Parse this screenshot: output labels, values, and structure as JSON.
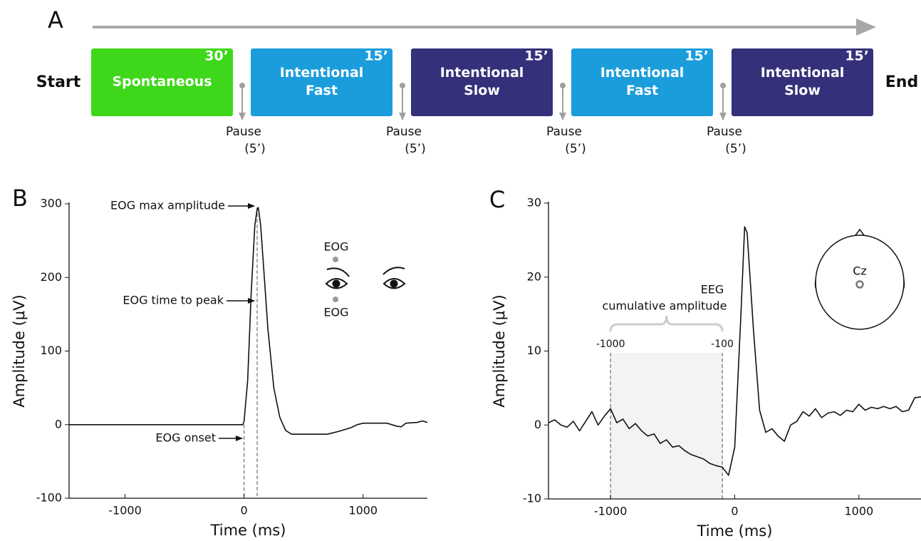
{
  "panel_labels": [
    "A",
    "B",
    "C"
  ],
  "protocol": {
    "start": "Start",
    "end": "End",
    "blocks": [
      {
        "lines": [
          "Spontaneous"
        ],
        "duration": "30’",
        "color": "#3fd71a"
      },
      {
        "lines": [
          "Intentional",
          "Fast"
        ],
        "duration": "15’",
        "color": "#1b9ddc"
      },
      {
        "lines": [
          "Intentional",
          "Slow"
        ],
        "duration": "15’",
        "color": "#343079"
      },
      {
        "lines": [
          "Intentional",
          "Fast"
        ],
        "duration": "15’",
        "color": "#1b9ddc"
      },
      {
        "lines": [
          "Intentional",
          "Slow"
        ],
        "duration": "15’",
        "color": "#343079"
      }
    ],
    "pauses": [
      {
        "label": "Pause",
        "duration": "(5’)"
      },
      {
        "label": "Pause",
        "duration": "(5’)"
      },
      {
        "label": "Pause",
        "duration": "(5’)"
      },
      {
        "label": "Pause",
        "duration": "(5’)"
      }
    ]
  },
  "chart_data": [
    {
      "type": "line",
      "xlabel": "Time (ms)",
      "ylabel": "Amplitude (μV)",
      "x": [
        -1470,
        -10,
        0,
        30,
        60,
        90,
        110,
        120,
        140,
        170,
        200,
        250,
        300,
        350,
        400,
        700,
        800,
        900,
        950,
        1000,
        1200,
        1280,
        1320,
        1360,
        1450,
        1500,
        1540
      ],
      "series": [
        {
          "color": "#111111",
          "values": [
            0,
            0,
            5,
            60,
            180,
            270,
            293,
            295,
            270,
            200,
            130,
            50,
            10,
            -8,
            -13,
            -13,
            -9,
            -4,
            0,
            2,
            2,
            -2,
            -3,
            2,
            3,
            5,
            3
          ]
        }
      ],
      "xlim": [
        -1470,
        1540
      ],
      "xticks": [
        -1000,
        0,
        1000
      ],
      "ylim": [
        -100,
        300
      ],
      "yticks": [
        -100,
        0,
        100,
        200,
        300
      ],
      "dashed_x": [
        0,
        110
      ],
      "annotations": [
        "EOG max amplitude",
        "EOG time to peak",
        "EOG onset"
      ],
      "electrode_labels": [
        "EOG",
        "EOG"
      ]
    },
    {
      "type": "line",
      "xlabel": "Time (ms)",
      "ylabel": "Amplitude (μV)",
      "x": [
        -1500,
        -1450,
        -1400,
        -1350,
        -1300,
        -1250,
        -1200,
        -1150,
        -1100,
        -1050,
        -1000,
        -950,
        -900,
        -850,
        -800,
        -750,
        -700,
        -650,
        -600,
        -550,
        -500,
        -450,
        -400,
        -350,
        -300,
        -250,
        -200,
        -150,
        -100,
        -50,
        0,
        50,
        80,
        100,
        150,
        200,
        250,
        300,
        350,
        400,
        450,
        500,
        550,
        600,
        650,
        700,
        750,
        800,
        850,
        900,
        950,
        1000,
        1050,
        1100,
        1150,
        1200,
        1250,
        1300,
        1350,
        1400,
        1450,
        1500
      ],
      "series": [
        {
          "color": "#111111",
          "values": [
            0.3,
            0.7,
            0,
            -0.3,
            0.5,
            -0.8,
            0.5,
            1.8,
            0,
            1.2,
            2.2,
            0.3,
            0.8,
            -0.5,
            0.2,
            -0.8,
            -1.5,
            -1.2,
            -2.5,
            -2,
            -3,
            -2.8,
            -3.5,
            -4,
            -4.3,
            -4.6,
            -5.2,
            -5.5,
            -5.7,
            -6.8,
            -3,
            15,
            26.8,
            26,
            13,
            2,
            -1,
            -0.5,
            -1.5,
            -2.2,
            0,
            0.5,
            1.8,
            1.2,
            2.2,
            1,
            1.6,
            1.8,
            1.3,
            2,
            1.8,
            2.8,
            2,
            2.4,
            2.2,
            2.5,
            2.2,
            2.5,
            1.8,
            2,
            3.7,
            3.8
          ]
        }
      ],
      "xlim": [
        -1500,
        1500
      ],
      "xticks": [
        -1000,
        0,
        1000
      ],
      "ylim": [
        -10,
        30
      ],
      "yticks": [
        -10,
        0,
        10,
        20,
        30
      ],
      "shaded_range": [
        -1000,
        -100
      ],
      "annotation_lines": [
        "EEG",
        "cumulative amplitude"
      ],
      "electrode_labels": [
        "Cz"
      ]
    }
  ]
}
